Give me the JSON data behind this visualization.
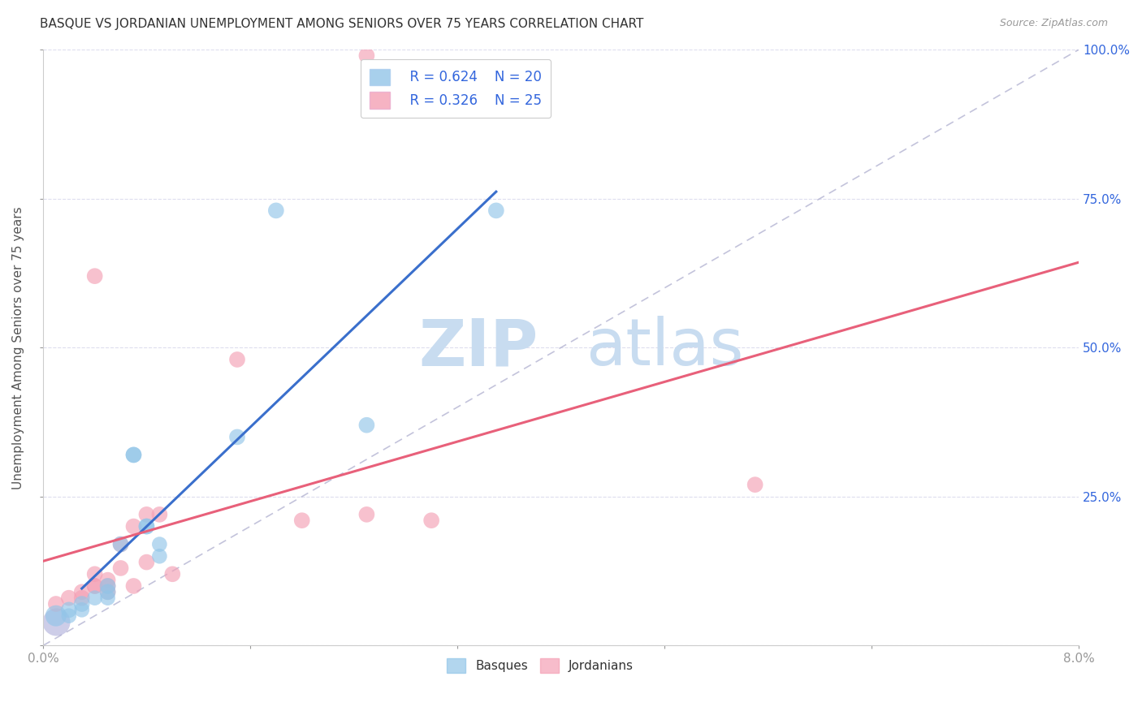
{
  "title": "BASQUE VS JORDANIAN UNEMPLOYMENT AMONG SENIORS OVER 75 YEARS CORRELATION CHART",
  "source": "Source: ZipAtlas.com",
  "ylabel": "Unemployment Among Seniors over 75 years",
  "xlim": [
    0.0,
    0.08
  ],
  "ylim": [
    0.0,
    1.0
  ],
  "basque_color": "#92C5E8",
  "jordan_color": "#F4A0B5",
  "basque_line_color": "#3A6FCC",
  "jordan_line_color": "#E8607A",
  "diagonal_color": "#AAAACC",
  "legend_basque_R": "R = 0.624",
  "legend_basque_N": "N = 20",
  "legend_jordan_R": "R = 0.326",
  "legend_jordan_N": "N = 25",
  "basque_x": [
    0.001,
    0.002,
    0.002,
    0.003,
    0.003,
    0.004,
    0.005,
    0.005,
    0.005,
    0.006,
    0.007,
    0.007,
    0.008,
    0.008,
    0.009,
    0.009,
    0.015,
    0.018,
    0.025,
    0.035
  ],
  "basque_y": [
    0.05,
    0.06,
    0.05,
    0.07,
    0.06,
    0.08,
    0.1,
    0.09,
    0.08,
    0.17,
    0.32,
    0.32,
    0.2,
    0.2,
    0.15,
    0.17,
    0.35,
    0.73,
    0.37,
    0.73
  ],
  "basque_sizes": [
    350,
    200,
    180,
    200,
    180,
    180,
    200,
    200,
    180,
    200,
    200,
    200,
    200,
    200,
    180,
    180,
    200,
    200,
    200,
    200
  ],
  "jordan_x": [
    0.001,
    0.002,
    0.003,
    0.003,
    0.004,
    0.004,
    0.004,
    0.005,
    0.005,
    0.005,
    0.006,
    0.006,
    0.007,
    0.007,
    0.008,
    0.008,
    0.009,
    0.01,
    0.015,
    0.02,
    0.025,
    0.025,
    0.03,
    0.055,
    0.004
  ],
  "jordan_y": [
    0.07,
    0.08,
    0.09,
    0.08,
    0.12,
    0.1,
    0.1,
    0.11,
    0.1,
    0.09,
    0.17,
    0.13,
    0.2,
    0.1,
    0.22,
    0.14,
    0.22,
    0.12,
    0.48,
    0.21,
    0.22,
    0.99,
    0.21,
    0.27,
    0.62
  ],
  "jordan_sizes": [
    200,
    200,
    200,
    200,
    200,
    200,
    200,
    200,
    200,
    200,
    200,
    200,
    200,
    200,
    200,
    200,
    200,
    200,
    200,
    200,
    200,
    200,
    200,
    200,
    200
  ],
  "basque_line_xmin": 0.003,
  "basque_line_xmax": 0.035,
  "jordan_line_xmin": 0.0,
  "jordan_line_xmax": 0.08
}
